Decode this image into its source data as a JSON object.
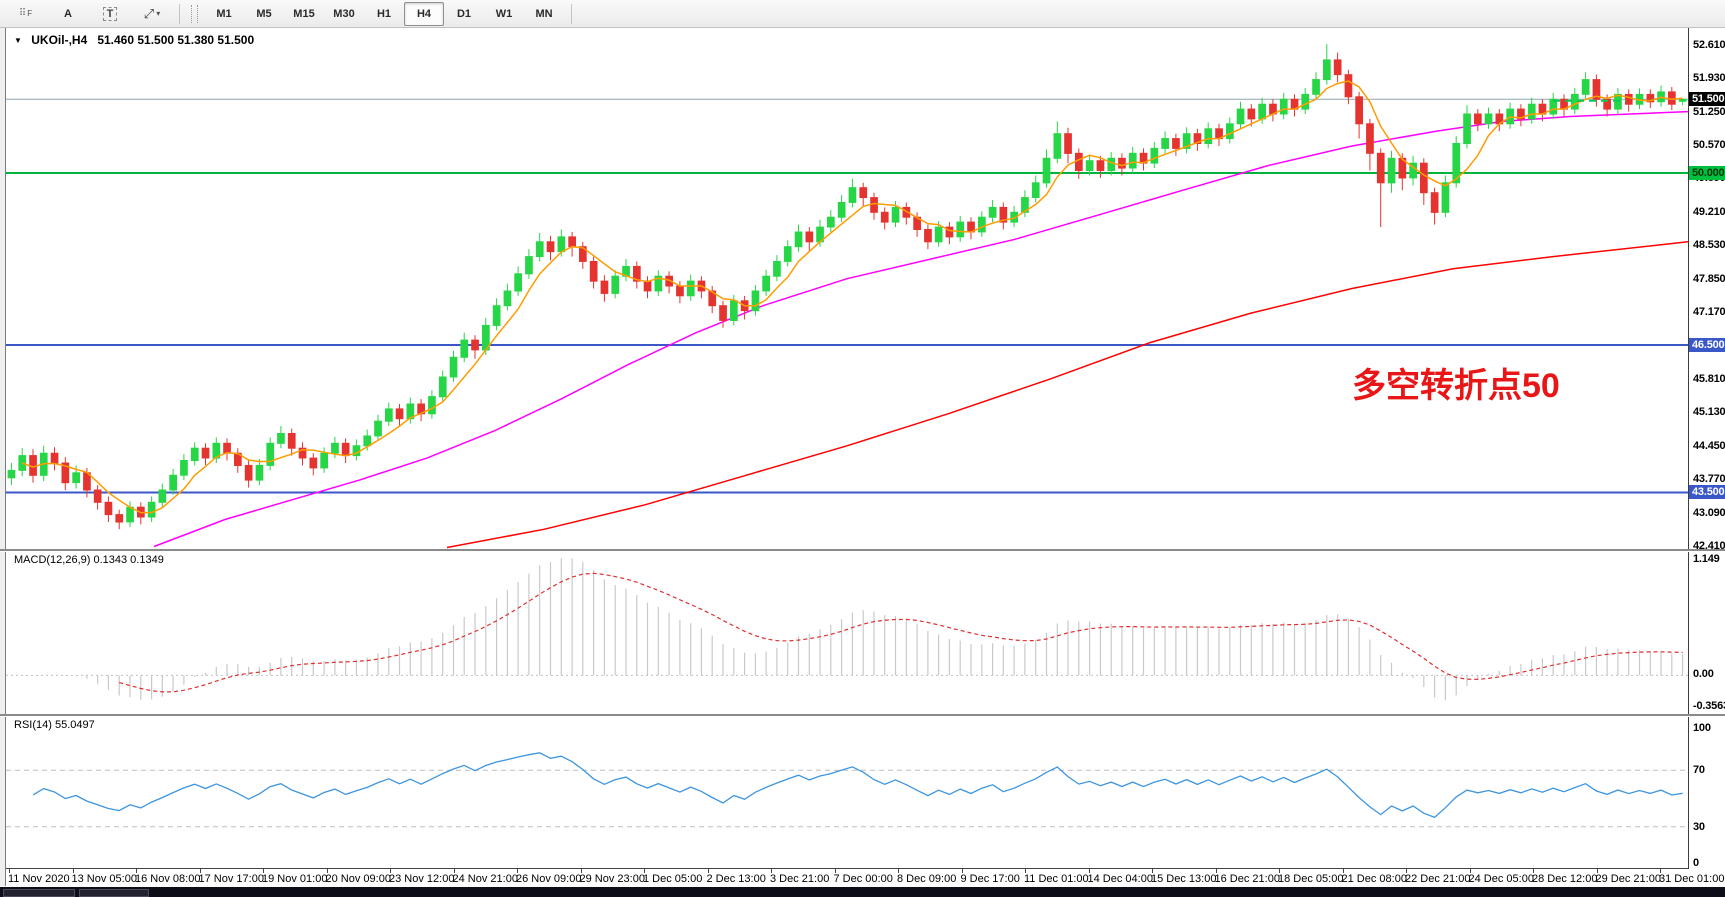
{
  "toolbar": {
    "grid_tool": "⠿",
    "grid_tool_sub": "F",
    "font_tool": "A",
    "text_tool": "T",
    "cursor_tool": "⤢",
    "caret": "▾",
    "timeframes": [
      "M1",
      "M5",
      "M15",
      "M30",
      "H1",
      "H4",
      "D1",
      "W1",
      "MN"
    ],
    "active_timeframe": "H4"
  },
  "chart": {
    "annotation": {
      "text": "多空转折点50",
      "color": "#e81616"
    }
  },
  "chart_data": {
    "type": "candlestick",
    "symbol_period": "UKOil-,H4",
    "ohlc_line": "51.460 51.500 51.380 51.500",
    "ylim": [
      42.35,
      52.95
    ],
    "ylim_macd": [
      -0.3563,
      1.149
    ],
    "colors": {
      "up": "#27d647",
      "down": "#e53430",
      "ma_fast": "#ff9d00",
      "ma_mid": "#ff00ff",
      "ma_slow": "#ff0000",
      "macd_hist": "#c9c9c9",
      "macd_signal": "#e03030",
      "rsi": "#3d95e0",
      "bid_dash": "#00cc55",
      "current_price_line": "#8fa6b4"
    },
    "price_ticks": [
      "52.610",
      "51.930",
      "51.250",
      "50.570",
      "49.890",
      "49.210",
      "48.530",
      "47.850",
      "47.170",
      "45.810",
      "45.130",
      "44.450",
      "43.770",
      "43.090",
      "42.410"
    ],
    "hlines": [
      {
        "value": 51.5,
        "color": "#8fa6b4",
        "width": 1,
        "label": "51.500",
        "label_bg": "#000000",
        "label_fg": "#ffffff"
      },
      {
        "value": 50.0,
        "color": "#00b33c",
        "width": 2,
        "label": "50.000",
        "label_bg": "#00c040",
        "label_fg": "#063306"
      },
      {
        "value": 46.5,
        "color": "#3a57c8",
        "width": 2,
        "label": "46.500",
        "label_bg": "#3a57c8",
        "label_fg": "#ffffff"
      },
      {
        "value": 43.5,
        "color": "#3a57c8",
        "width": 2,
        "label": "43.500",
        "label_bg": "#3a57c8",
        "label_fg": "#ffffff"
      }
    ],
    "bid_segment": {
      "x1": 0.92,
      "x2": 0.963,
      "price": 51.47
    },
    "ma_mid_points": [
      [
        0.088,
        42.4
      ],
      [
        0.13,
        42.95
      ],
      [
        0.17,
        43.35
      ],
      [
        0.21,
        43.75
      ],
      [
        0.25,
        44.2
      ],
      [
        0.29,
        44.75
      ],
      [
        0.33,
        45.4
      ],
      [
        0.37,
        46.1
      ],
      [
        0.41,
        46.75
      ],
      [
        0.45,
        47.3
      ],
      [
        0.5,
        47.85
      ],
      [
        0.55,
        48.25
      ],
      [
        0.6,
        48.65
      ],
      [
        0.65,
        49.15
      ],
      [
        0.7,
        49.65
      ],
      [
        0.75,
        50.15
      ],
      [
        0.8,
        50.55
      ],
      [
        0.85,
        50.85
      ],
      [
        0.89,
        51.05
      ],
      [
        0.93,
        51.15
      ],
      [
        1.0,
        51.25
      ]
    ],
    "ma_slow_points": [
      [
        0.262,
        42.38
      ],
      [
        0.32,
        42.75
      ],
      [
        0.38,
        43.25
      ],
      [
        0.44,
        43.85
      ],
      [
        0.5,
        44.45
      ],
      [
        0.56,
        45.1
      ],
      [
        0.62,
        45.8
      ],
      [
        0.68,
        46.55
      ],
      [
        0.74,
        47.15
      ],
      [
        0.8,
        47.65
      ],
      [
        0.86,
        48.05
      ],
      [
        0.92,
        48.3
      ],
      [
        1.0,
        48.6
      ]
    ],
    "indicators": [
      {
        "name": "MACD",
        "label": "MACD(12,26,9) 0.1343 0.1349",
        "axis": [
          "1.149",
          "0.00",
          "-0.3563"
        ]
      },
      {
        "name": "RSI",
        "label": "RSI(14) 55.0497",
        "axis": [
          "100",
          "70",
          "30",
          "0"
        ],
        "levels": [
          70,
          30
        ]
      }
    ],
    "x_labels": [
      "11 Nov 2020",
      "13 Nov 05:00",
      "16 Nov 08:00",
      "17 Nov 17:00",
      "19 Nov 01:00",
      "20 Nov 09:00",
      "23 Nov 12:00",
      "24 Nov 21:00",
      "26 Nov 09:00",
      "29 Nov 23:00",
      "1 Dec 05:00",
      "2 Dec 13:00",
      "3 Dec 21:00",
      "7 Dec 00:00",
      "8 Dec 09:00",
      "9 Dec 17:00",
      "11 Dec 01:00",
      "14 Dec 04:00",
      "15 Dec 13:00",
      "16 Dec 21:00",
      "18 Dec 05:00",
      "21 Dec 08:00",
      "22 Dec 21:00",
      "24 Dec 05:00",
      "28 Dec 12:00",
      "29 Dec 21:00",
      "31 Dec 01:00"
    ],
    "candles": [
      [
        43.8,
        44.1,
        43.65,
        43.95
      ],
      [
        43.95,
        44.4,
        43.83,
        44.25
      ],
      [
        44.25,
        44.38,
        43.7,
        43.85
      ],
      [
        43.85,
        44.45,
        43.73,
        44.3
      ],
      [
        44.3,
        44.42,
        43.95,
        44.1
      ],
      [
        44.1,
        44.22,
        43.55,
        43.7
      ],
      [
        43.7,
        44.05,
        43.58,
        43.9
      ],
      [
        43.9,
        44.0,
        43.4,
        43.55
      ],
      [
        43.55,
        43.65,
        43.15,
        43.3
      ],
      [
        43.3,
        43.42,
        42.9,
        43.05
      ],
      [
        43.05,
        43.15,
        42.75,
        42.9
      ],
      [
        42.9,
        43.32,
        42.8,
        43.2
      ],
      [
        43.2,
        43.3,
        42.85,
        43.0
      ],
      [
        43.0,
        43.42,
        42.9,
        43.3
      ],
      [
        43.3,
        43.68,
        43.2,
        43.55
      ],
      [
        43.55,
        43.98,
        43.45,
        43.85
      ],
      [
        43.85,
        44.28,
        43.75,
        44.15
      ],
      [
        44.15,
        44.52,
        44.05,
        44.4
      ],
      [
        44.4,
        44.5,
        44.06,
        44.2
      ],
      [
        44.2,
        44.62,
        44.1,
        44.5
      ],
      [
        44.5,
        44.6,
        44.15,
        44.3
      ],
      [
        44.3,
        44.4,
        43.9,
        44.05
      ],
      [
        44.05,
        44.15,
        43.6,
        43.75
      ],
      [
        43.75,
        44.18,
        43.65,
        44.05
      ],
      [
        44.05,
        44.62,
        43.95,
        44.5
      ],
      [
        44.5,
        44.85,
        44.4,
        44.7
      ],
      [
        44.7,
        44.8,
        44.25,
        44.4
      ],
      [
        44.4,
        44.52,
        44.05,
        44.2
      ],
      [
        44.2,
        44.3,
        43.85,
        44.0
      ],
      [
        44.0,
        44.42,
        43.9,
        44.3
      ],
      [
        44.3,
        44.63,
        44.2,
        44.5
      ],
      [
        44.5,
        44.6,
        44.1,
        44.25
      ],
      [
        44.25,
        44.58,
        44.15,
        44.45
      ],
      [
        44.45,
        44.78,
        44.35,
        44.65
      ],
      [
        44.65,
        45.08,
        44.55,
        44.95
      ],
      [
        44.95,
        45.33,
        44.85,
        45.2
      ],
      [
        45.2,
        45.3,
        44.85,
        45.0
      ],
      [
        45.0,
        45.43,
        44.9,
        45.3
      ],
      [
        45.3,
        45.4,
        44.95,
        45.1
      ],
      [
        45.1,
        45.58,
        45.0,
        45.45
      ],
      [
        45.45,
        45.98,
        45.35,
        45.85
      ],
      [
        45.85,
        46.38,
        45.75,
        46.25
      ],
      [
        46.25,
        46.75,
        46.15,
        46.6
      ],
      [
        46.6,
        46.7,
        46.22,
        46.4
      ],
      [
        46.4,
        47.05,
        46.3,
        46.9
      ],
      [
        46.9,
        47.45,
        46.8,
        47.3
      ],
      [
        47.3,
        47.75,
        47.2,
        47.6
      ],
      [
        47.6,
        48.1,
        47.5,
        47.95
      ],
      [
        47.95,
        48.45,
        47.85,
        48.3
      ],
      [
        48.3,
        48.78,
        48.2,
        48.6
      ],
      [
        48.6,
        48.72,
        48.22,
        48.4
      ],
      [
        48.4,
        48.85,
        48.3,
        48.7
      ],
      [
        48.7,
        48.8,
        48.3,
        48.5
      ],
      [
        48.5,
        48.6,
        48.05,
        48.2
      ],
      [
        48.2,
        48.3,
        47.65,
        47.8
      ],
      [
        47.8,
        47.92,
        47.38,
        47.55
      ],
      [
        47.55,
        48.02,
        47.45,
        47.9
      ],
      [
        47.9,
        48.25,
        47.8,
        48.1
      ],
      [
        48.1,
        48.2,
        47.65,
        47.8
      ],
      [
        47.8,
        47.9,
        47.45,
        47.6
      ],
      [
        47.6,
        48.02,
        47.5,
        47.9
      ],
      [
        47.9,
        48.0,
        47.55,
        47.7
      ],
      [
        47.7,
        47.8,
        47.35,
        47.5
      ],
      [
        47.5,
        47.93,
        47.4,
        47.8
      ],
      [
        47.8,
        47.9,
        47.45,
        47.6
      ],
      [
        47.6,
        47.7,
        47.15,
        47.3
      ],
      [
        47.3,
        47.4,
        46.85,
        47.0
      ],
      [
        47.0,
        47.52,
        46.9,
        47.4
      ],
      [
        47.4,
        47.5,
        47.02,
        47.2
      ],
      [
        47.2,
        47.72,
        47.1,
        47.6
      ],
      [
        47.6,
        48.03,
        47.5,
        47.9
      ],
      [
        47.9,
        48.33,
        47.8,
        48.2
      ],
      [
        48.2,
        48.63,
        48.1,
        48.5
      ],
      [
        48.5,
        48.95,
        48.4,
        48.8
      ],
      [
        48.8,
        48.9,
        48.42,
        48.6
      ],
      [
        48.6,
        49.05,
        48.5,
        48.9
      ],
      [
        48.9,
        49.25,
        48.8,
        49.1
      ],
      [
        49.1,
        49.55,
        49.0,
        49.4
      ],
      [
        49.4,
        49.88,
        49.3,
        49.7
      ],
      [
        49.7,
        49.8,
        49.32,
        49.5
      ],
      [
        49.5,
        49.6,
        49.05,
        49.2
      ],
      [
        49.2,
        49.3,
        48.85,
        49.0
      ],
      [
        49.0,
        49.43,
        48.9,
        49.3
      ],
      [
        49.3,
        49.4,
        48.95,
        49.1
      ],
      [
        49.1,
        49.2,
        48.7,
        48.85
      ],
      [
        48.85,
        48.95,
        48.45,
        48.6
      ],
      [
        48.6,
        49.02,
        48.5,
        48.9
      ],
      [
        48.9,
        49.0,
        48.55,
        48.7
      ],
      [
        48.7,
        49.13,
        48.6,
        49.0
      ],
      [
        49.0,
        49.1,
        48.65,
        48.8
      ],
      [
        48.8,
        49.22,
        48.7,
        49.1
      ],
      [
        49.1,
        49.45,
        49.0,
        49.3
      ],
      [
        49.3,
        49.4,
        48.85,
        49.0
      ],
      [
        49.0,
        49.33,
        48.9,
        49.2
      ],
      [
        49.2,
        49.65,
        49.1,
        49.5
      ],
      [
        49.5,
        49.95,
        49.4,
        49.8
      ],
      [
        49.8,
        50.48,
        49.7,
        50.3
      ],
      [
        50.3,
        51.05,
        50.2,
        50.8
      ],
      [
        50.8,
        50.92,
        50.2,
        50.4
      ],
      [
        50.4,
        50.5,
        49.88,
        50.05
      ],
      [
        50.05,
        50.38,
        49.95,
        50.25
      ],
      [
        50.25,
        50.35,
        49.9,
        50.05
      ],
      [
        50.05,
        50.43,
        49.95,
        50.3
      ],
      [
        50.3,
        50.4,
        49.95,
        50.1
      ],
      [
        50.1,
        50.53,
        50.0,
        50.4
      ],
      [
        50.4,
        50.5,
        50.05,
        50.2
      ],
      [
        50.2,
        50.63,
        50.1,
        50.5
      ],
      [
        50.5,
        50.85,
        50.4,
        50.7
      ],
      [
        50.7,
        50.8,
        50.35,
        50.5
      ],
      [
        50.5,
        50.93,
        50.4,
        50.8
      ],
      [
        50.8,
        50.9,
        50.45,
        50.6
      ],
      [
        50.6,
        51.03,
        50.5,
        50.9
      ],
      [
        50.9,
        51.0,
        50.55,
        50.7
      ],
      [
        50.7,
        51.13,
        50.6,
        51.0
      ],
      [
        51.0,
        51.45,
        50.9,
        51.3
      ],
      [
        51.3,
        51.4,
        50.95,
        51.1
      ],
      [
        51.1,
        51.53,
        51.0,
        51.4
      ],
      [
        51.4,
        51.5,
        51.05,
        51.2
      ],
      [
        51.2,
        51.63,
        51.1,
        51.5
      ],
      [
        51.5,
        51.6,
        51.15,
        51.3
      ],
      [
        51.3,
        51.73,
        51.2,
        51.6
      ],
      [
        51.6,
        52.05,
        51.5,
        51.9
      ],
      [
        51.9,
        52.62,
        51.8,
        52.3
      ],
      [
        52.3,
        52.45,
        51.85,
        52.0
      ],
      [
        52.0,
        52.1,
        51.4,
        51.55
      ],
      [
        51.55,
        51.65,
        50.7,
        51.0
      ],
      [
        51.0,
        51.1,
        50.05,
        50.4
      ],
      [
        50.4,
        50.5,
        48.9,
        49.8
      ],
      [
        49.8,
        50.45,
        49.6,
        50.3
      ],
      [
        50.3,
        50.4,
        49.65,
        49.9
      ],
      [
        49.9,
        50.35,
        49.75,
        50.2
      ],
      [
        50.2,
        50.3,
        49.35,
        49.6
      ],
      [
        49.6,
        49.7,
        48.95,
        49.2
      ],
      [
        49.2,
        49.95,
        49.1,
        49.8
      ],
      [
        49.8,
        50.75,
        49.7,
        50.6
      ],
      [
        50.6,
        51.38,
        50.5,
        51.2
      ],
      [
        51.2,
        51.3,
        50.85,
        51.0
      ],
      [
        51.0,
        51.33,
        50.9,
        51.2
      ],
      [
        51.2,
        51.3,
        50.85,
        51.0
      ],
      [
        51.0,
        51.43,
        50.9,
        51.3
      ],
      [
        51.3,
        51.4,
        50.95,
        51.1
      ],
      [
        51.1,
        51.53,
        51.0,
        51.4
      ],
      [
        51.4,
        51.5,
        51.05,
        51.2
      ],
      [
        51.2,
        51.63,
        51.1,
        51.5
      ],
      [
        51.5,
        51.6,
        51.15,
        51.3
      ],
      [
        51.3,
        51.73,
        51.2,
        51.6
      ],
      [
        51.6,
        52.05,
        51.5,
        51.9
      ],
      [
        51.9,
        52.0,
        51.35,
        51.5
      ],
      [
        51.5,
        51.6,
        51.15,
        51.3
      ],
      [
        51.3,
        51.73,
        51.2,
        51.6
      ],
      [
        51.6,
        51.7,
        51.25,
        51.4
      ],
      [
        51.4,
        51.72,
        51.3,
        51.6
      ],
      [
        51.6,
        51.7,
        51.32,
        51.45
      ],
      [
        51.45,
        51.78,
        51.35,
        51.65
      ],
      [
        51.65,
        51.75,
        51.28,
        51.4
      ],
      [
        51.46,
        51.5,
        51.38,
        51.5
      ]
    ]
  }
}
